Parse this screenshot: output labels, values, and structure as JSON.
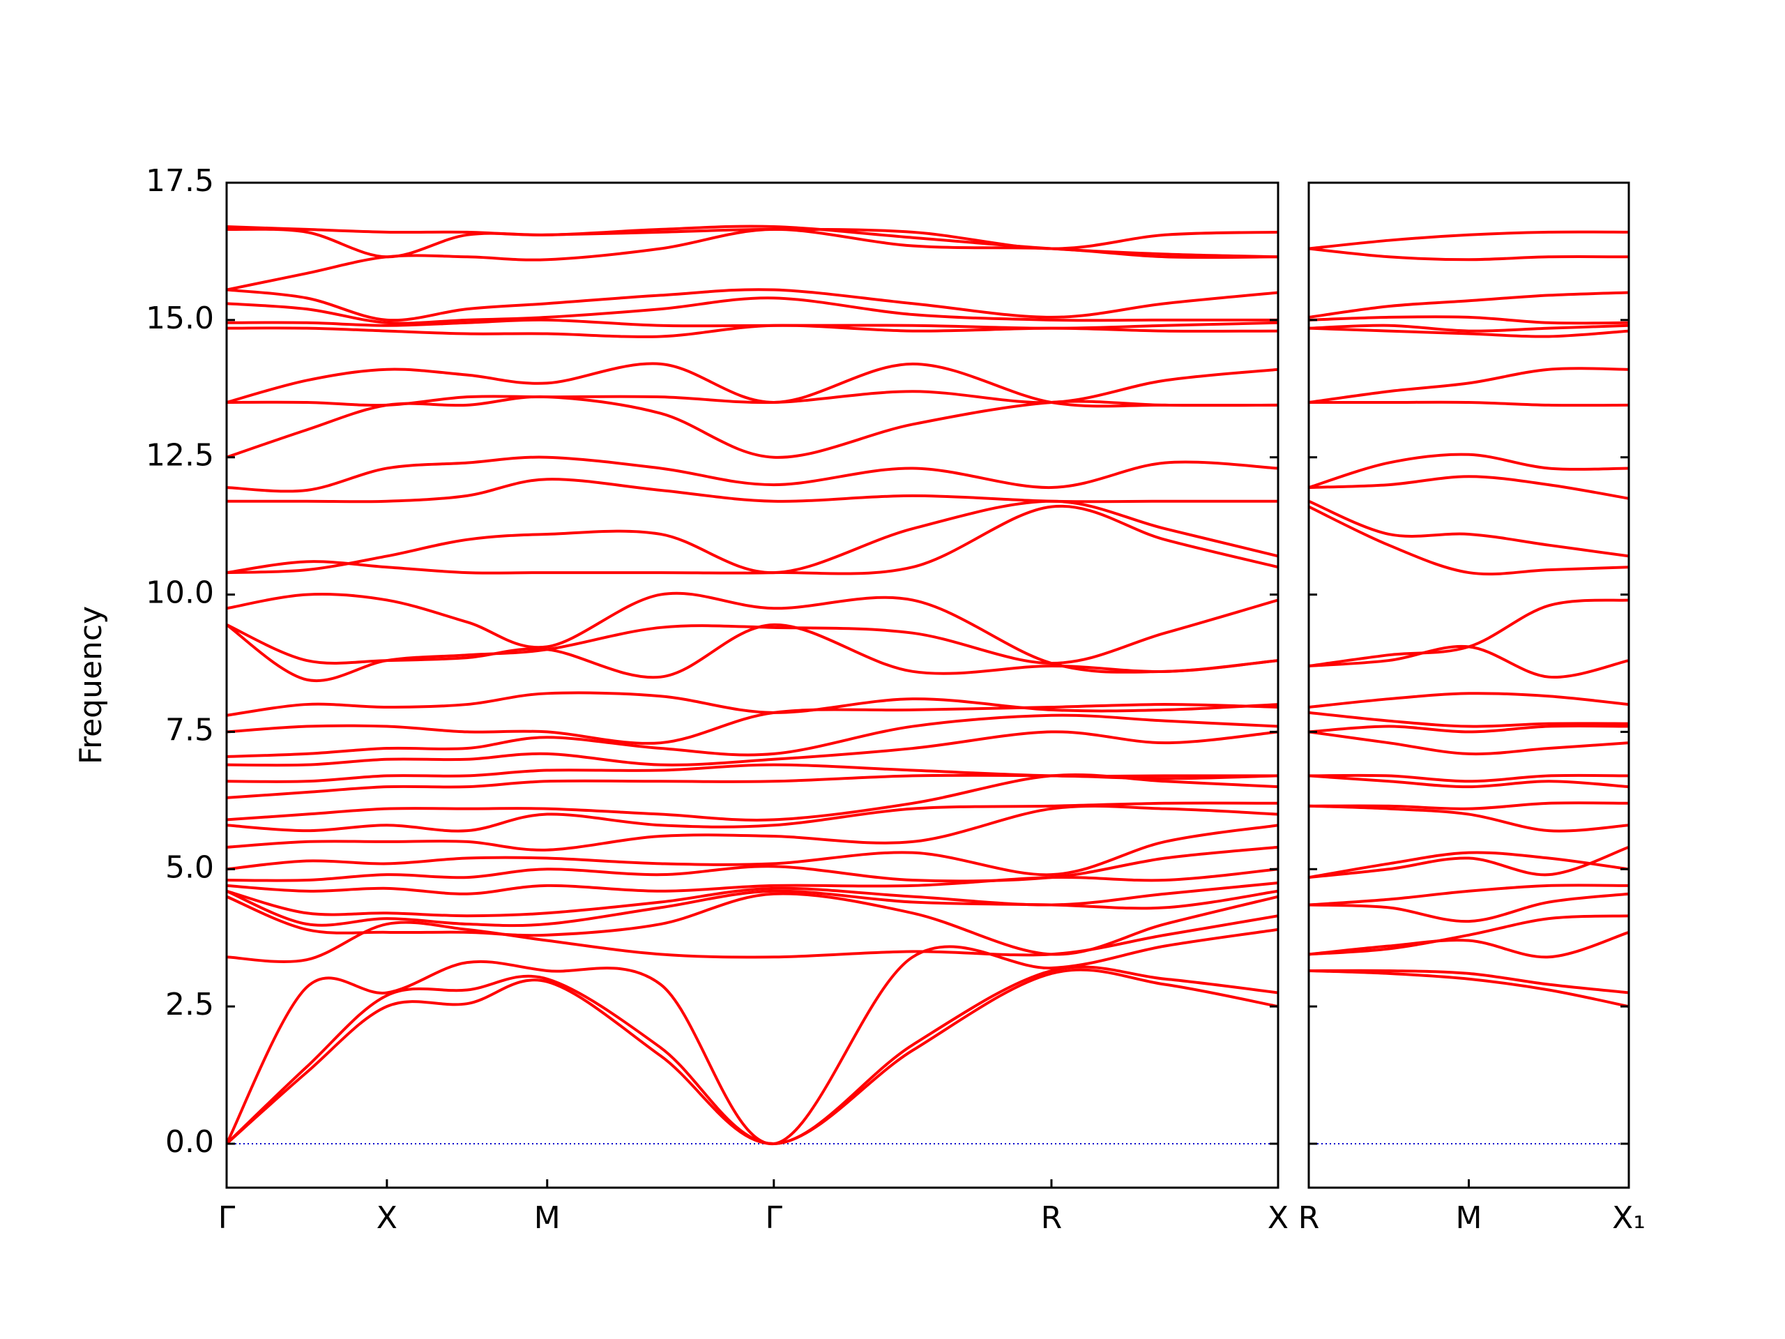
{
  "chart_data": [
    {
      "type": "line",
      "ylabel": "Frequency",
      "color": "#ff0000",
      "hline": {
        "value": 0,
        "color": "#0000cc"
      },
      "xlim": [
        0,
        3.28
      ],
      "ylim": [
        -0.8,
        17.5
      ],
      "xticks": [
        {
          "value": 0,
          "label": "Γ"
        },
        {
          "value": 0.5,
          "label": "X"
        },
        {
          "value": 1.0,
          "label": "M"
        },
        {
          "value": 1.707,
          "label": "Γ"
        },
        {
          "value": 2.573,
          "label": "R"
        },
        {
          "value": 3.28,
          "label": "X"
        }
      ],
      "yticks": [
        {
          "value": 0,
          "label": "0.0"
        },
        2.5,
        {
          "value": 5,
          "label": "5.0"
        },
        7.5,
        {
          "value": 10,
          "label": "10.0"
        },
        12.5,
        {
          "value": 15,
          "label": "15.0"
        },
        17.5
      ],
      "x": [
        0,
        0.25,
        0.5,
        0.75,
        1.0,
        1.354,
        1.707,
        2.14,
        2.573,
        2.927,
        3.28
      ],
      "series": [
        {
          "values": [
            0,
            1.3,
            2.5,
            2.55,
            2.95,
            1.6,
            0,
            1.7,
            3.1,
            2.9,
            2.5
          ]
        },
        {
          "values": [
            0,
            1.4,
            2.7,
            2.8,
            3.0,
            1.75,
            0,
            1.8,
            3.15,
            3.0,
            2.75
          ]
        },
        {
          "values": [
            0,
            2.85,
            2.75,
            3.3,
            3.15,
            2.9,
            0,
            3.4,
            3.2,
            3.6,
            3.9
          ]
        },
        {
          "values": [
            3.4,
            3.35,
            4.0,
            3.9,
            3.7,
            3.45,
            3.4,
            3.5,
            3.45,
            3.8,
            4.15
          ]
        },
        {
          "values": [
            4.5,
            3.9,
            3.85,
            3.85,
            3.8,
            4.0,
            4.55,
            4.2,
            3.45,
            4.0,
            4.5
          ]
        },
        {
          "values": [
            4.6,
            4.0,
            4.1,
            4.0,
            4.0,
            4.3,
            4.6,
            4.4,
            4.35,
            4.3,
            4.6
          ]
        },
        {
          "values": [
            4.6,
            4.2,
            4.2,
            4.15,
            4.2,
            4.4,
            4.65,
            4.5,
            4.35,
            4.55,
            4.75
          ]
        },
        {
          "values": [
            4.7,
            4.6,
            4.65,
            4.55,
            4.7,
            4.6,
            4.7,
            4.7,
            4.85,
            4.8,
            5.0
          ]
        },
        {
          "values": [
            4.8,
            4.8,
            4.9,
            4.85,
            5.0,
            4.9,
            5.05,
            4.8,
            4.85,
            5.2,
            5.4
          ]
        },
        {
          "values": [
            5.0,
            5.15,
            5.1,
            5.2,
            5.2,
            5.1,
            5.1,
            5.3,
            4.9,
            5.5,
            5.8
          ]
        },
        {
          "values": [
            5.4,
            5.5,
            5.5,
            5.5,
            5.35,
            5.6,
            5.6,
            5.5,
            6.1,
            6.1,
            6.0
          ]
        },
        {
          "values": [
            5.8,
            5.7,
            5.8,
            5.7,
            6.0,
            5.8,
            5.8,
            6.1,
            6.15,
            6.2,
            6.2
          ]
        },
        {
          "values": [
            5.9,
            6.0,
            6.1,
            6.1,
            6.1,
            6.0,
            5.9,
            6.2,
            6.7,
            6.6,
            6.5
          ]
        },
        {
          "values": [
            6.3,
            6.4,
            6.5,
            6.5,
            6.6,
            6.6,
            6.6,
            6.7,
            6.7,
            6.65,
            6.7
          ]
        },
        {
          "values": [
            6.6,
            6.6,
            6.7,
            6.7,
            6.8,
            6.8,
            6.9,
            6.8,
            6.7,
            6.7,
            6.7
          ]
        },
        {
          "values": [
            6.9,
            6.9,
            7.0,
            7.0,
            7.1,
            6.9,
            7.0,
            7.2,
            7.5,
            7.3,
            7.5
          ]
        },
        {
          "values": [
            7.05,
            7.1,
            7.2,
            7.2,
            7.4,
            7.2,
            7.1,
            7.6,
            7.8,
            7.7,
            7.6
          ]
        },
        {
          "values": [
            7.5,
            7.6,
            7.6,
            7.5,
            7.5,
            7.3,
            7.85,
            7.9,
            7.95,
            8.0,
            7.95
          ]
        },
        {
          "values": [
            7.8,
            8.0,
            7.95,
            8.0,
            8.2,
            8.15,
            7.85,
            8.1,
            7.9,
            7.9,
            8.0
          ]
        },
        {
          "values": [
            9.45,
            8.8,
            8.8,
            8.85,
            9.0,
            8.5,
            9.45,
            8.6,
            8.7,
            8.6,
            8.8
          ]
        },
        {
          "values": [
            9.45,
            8.45,
            8.8,
            8.9,
            9.0,
            9.4,
            9.4,
            9.3,
            8.75,
            9.3,
            9.9
          ]
        },
        {
          "values": [
            9.75,
            10.0,
            9.9,
            9.5,
            9.05,
            10.0,
            9.75,
            9.9,
            8.75,
            8.6,
            8.8
          ]
        },
        {
          "values": [
            10.4,
            10.6,
            10.5,
            10.4,
            10.4,
            10.4,
            10.4,
            10.5,
            11.6,
            11.0,
            10.5
          ]
        },
        {
          "values": [
            10.4,
            10.45,
            10.7,
            11.0,
            11.1,
            11.1,
            10.4,
            11.2,
            11.7,
            11.2,
            10.7
          ]
        },
        {
          "values": [
            11.7,
            11.7,
            11.7,
            11.8,
            12.1,
            11.9,
            11.7,
            11.8,
            11.7,
            11.7,
            11.7
          ]
        },
        {
          "values": [
            11.95,
            11.9,
            12.3,
            12.4,
            12.5,
            12.3,
            12.0,
            12.3,
            11.95,
            12.4,
            12.3
          ]
        },
        {
          "values": [
            12.5,
            13.0,
            13.45,
            13.45,
            13.6,
            13.3,
            12.5,
            13.1,
            13.5,
            13.45,
            13.45
          ]
        },
        {
          "values": [
            13.5,
            13.5,
            13.45,
            13.6,
            13.6,
            13.6,
            13.5,
            13.7,
            13.5,
            13.9,
            14.1
          ]
        },
        {
          "values": [
            13.5,
            13.9,
            14.1,
            14.0,
            13.85,
            14.2,
            13.5,
            14.2,
            13.5,
            13.45,
            13.45
          ]
        },
        {
          "values": [
            14.85,
            14.85,
            14.8,
            14.75,
            14.75,
            14.7,
            14.9,
            14.8,
            14.85,
            14.8,
            14.8
          ]
        },
        {
          "values": [
            14.95,
            14.95,
            14.9,
            14.95,
            15.0,
            14.9,
            14.9,
            14.9,
            14.85,
            14.9,
            14.95
          ]
        },
        {
          "values": [
            15.3,
            15.2,
            14.95,
            15.0,
            15.05,
            15.2,
            15.4,
            15.1,
            15.0,
            15.0,
            15.0
          ]
        },
        {
          "values": [
            15.55,
            15.4,
            15.0,
            15.2,
            15.3,
            15.45,
            15.55,
            15.3,
            15.05,
            15.3,
            15.5
          ]
        },
        {
          "values": [
            15.55,
            15.85,
            16.15,
            16.15,
            16.1,
            16.3,
            16.65,
            16.35,
            16.3,
            16.15,
            16.15
          ]
        },
        {
          "values": [
            16.65,
            16.6,
            16.15,
            16.55,
            16.55,
            16.6,
            16.65,
            16.6,
            16.3,
            16.55,
            16.6
          ]
        },
        {
          "values": [
            16.7,
            16.65,
            16.6,
            16.6,
            16.55,
            16.65,
            16.7,
            16.5,
            16.3,
            16.2,
            16.15
          ]
        }
      ]
    },
    {
      "type": "line",
      "color": "#ff0000",
      "hline": {
        "value": 0,
        "color": "#0000cc"
      },
      "xlim": [
        0,
        1.0
      ],
      "ylim": [
        -0.8,
        17.5
      ],
      "xticks": [
        {
          "value": 0,
          "label": "R"
        },
        {
          "value": 0.5,
          "label": "M"
        },
        {
          "value": 1.0,
          "label": "X₁"
        }
      ],
      "yticks": [
        0,
        2.5,
        5,
        7.5,
        10,
        12.5,
        15,
        17.5
      ],
      "x": [
        0,
        0.25,
        0.5,
        0.75,
        1.0
      ],
      "series": [
        {
          "values": [
            3.15,
            3.1,
            3.0,
            2.8,
            2.5
          ]
        },
        {
          "values": [
            3.15,
            3.15,
            3.1,
            2.9,
            2.75
          ]
        },
        {
          "values": [
            3.45,
            3.6,
            3.7,
            3.4,
            3.85
          ]
        },
        {
          "values": [
            3.45,
            3.55,
            3.8,
            4.1,
            4.15
          ]
        },
        {
          "values": [
            4.35,
            4.3,
            4.05,
            4.4,
            4.55
          ]
        },
        {
          "values": [
            4.35,
            4.45,
            4.6,
            4.7,
            4.7
          ]
        },
        {
          "values": [
            4.85,
            5.0,
            5.2,
            4.9,
            5.4
          ]
        },
        {
          "values": [
            4.85,
            5.1,
            5.3,
            5.2,
            5.0
          ]
        },
        {
          "values": [
            6.15,
            6.1,
            6.0,
            5.7,
            5.8
          ]
        },
        {
          "values": [
            6.15,
            6.15,
            6.1,
            6.2,
            6.2
          ]
        },
        {
          "values": [
            6.7,
            6.6,
            6.5,
            6.6,
            6.5
          ]
        },
        {
          "values": [
            6.7,
            6.7,
            6.6,
            6.7,
            6.7
          ]
        },
        {
          "values": [
            7.5,
            7.3,
            7.1,
            7.2,
            7.3
          ]
        },
        {
          "values": [
            7.5,
            7.6,
            7.5,
            7.6,
            7.6
          ]
        },
        {
          "values": [
            7.85,
            7.7,
            7.6,
            7.65,
            7.65
          ]
        },
        {
          "values": [
            7.95,
            8.1,
            8.2,
            8.15,
            8.0
          ]
        },
        {
          "values": [
            8.7,
            8.8,
            9.05,
            8.5,
            8.8
          ]
        },
        {
          "values": [
            8.7,
            8.9,
            9.05,
            9.8,
            9.9
          ]
        },
        {
          "values": [
            11.6,
            10.9,
            10.4,
            10.45,
            10.5
          ]
        },
        {
          "values": [
            11.7,
            11.1,
            11.1,
            10.9,
            10.7
          ]
        },
        {
          "values": [
            11.95,
            12.0,
            12.15,
            12.0,
            11.75
          ]
        },
        {
          "values": [
            11.95,
            12.4,
            12.55,
            12.3,
            12.3
          ]
        },
        {
          "values": [
            13.5,
            13.5,
            13.5,
            13.45,
            13.45
          ]
        },
        {
          "values": [
            13.5,
            13.7,
            13.85,
            14.1,
            14.1
          ]
        },
        {
          "values": [
            14.85,
            14.8,
            14.75,
            14.7,
            14.8
          ]
        },
        {
          "values": [
            14.85,
            14.9,
            14.8,
            14.85,
            14.9
          ]
        },
        {
          "values": [
            15.0,
            15.05,
            15.05,
            14.95,
            14.95
          ]
        },
        {
          "values": [
            15.05,
            15.25,
            15.35,
            15.45,
            15.5
          ]
        },
        {
          "values": [
            16.3,
            16.15,
            16.1,
            16.15,
            16.15
          ]
        },
        {
          "values": [
            16.3,
            16.45,
            16.55,
            16.6,
            16.6
          ]
        }
      ]
    }
  ]
}
